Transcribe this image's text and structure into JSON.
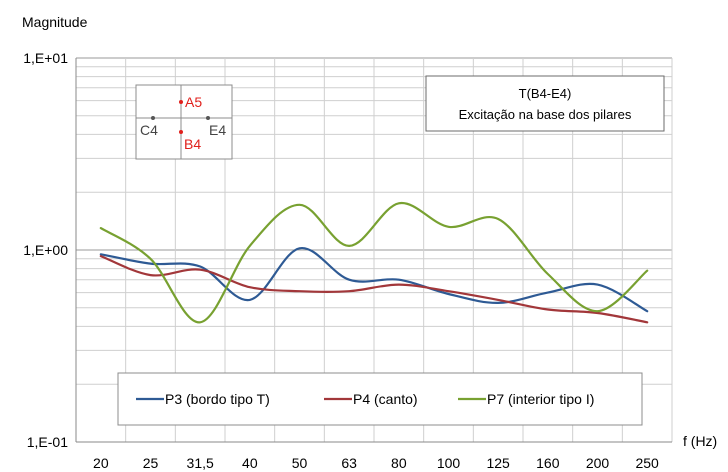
{
  "chart_data": {
    "type": "line",
    "ylabel": "Magnitude",
    "xlabel": "f (Hz)",
    "yscale": "log",
    "ylim": [
      0.1,
      10
    ],
    "ytick_labels": [
      "1,E+01",
      "1,E+00",
      "1,E-01"
    ],
    "categories": [
      "20",
      "25",
      "31,5",
      "40",
      "50",
      "63",
      "80",
      "100",
      "125",
      "160",
      "200",
      "250"
    ],
    "grid": true,
    "info_box": {
      "line1": "T(B4-E4)",
      "line2": "Excitação na base dos pilares"
    },
    "inset": {
      "labels": {
        "a": "A5",
        "b": "B4",
        "c": "C4",
        "e": "E4"
      }
    },
    "legend_position": "bottom",
    "series": [
      {
        "name": "P3 (bordo tipo T)",
        "color": "#2e5a94",
        "values": [
          0.95,
          0.85,
          0.82,
          0.55,
          1.02,
          0.7,
          0.7,
          0.59,
          0.53,
          0.6,
          0.66,
          0.48
        ]
      },
      {
        "name": "P4 (canto)",
        "color": "#a2373a",
        "values": [
          0.93,
          0.74,
          0.79,
          0.64,
          0.61,
          0.61,
          0.66,
          0.61,
          0.55,
          0.49,
          0.47,
          0.42
        ]
      },
      {
        "name": "P7 (interior tipo I)",
        "color": "#78a131",
        "values": [
          1.3,
          0.9,
          0.42,
          1.05,
          1.72,
          1.05,
          1.75,
          1.32,
          1.45,
          0.75,
          0.48,
          0.78
        ]
      }
    ]
  }
}
